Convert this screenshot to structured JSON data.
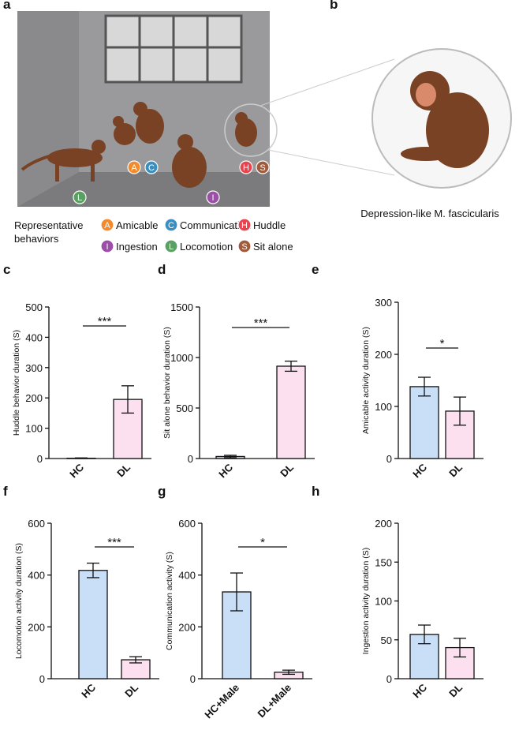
{
  "panels": {
    "a": "a",
    "b": "b"
  },
  "legend": {
    "title": "Representative behaviors",
    "behaviors": [
      {
        "letter": "A",
        "label": "Amicable",
        "color": "#f28a2e"
      },
      {
        "letter": "C",
        "label": "Communication",
        "color": "#3b8fc0"
      },
      {
        "letter": "H",
        "label": "Huddle",
        "color": "#e8434f"
      },
      {
        "letter": "I",
        "label": "Ingestion",
        "color": "#9b4fa6"
      },
      {
        "letter": "L",
        "label": "Locomotion",
        "color": "#5aa063"
      },
      {
        "letter": "S",
        "label": "Sit alone",
        "color": "#a05a3c"
      }
    ]
  },
  "caption_b": "Depression-like M. fascicularis",
  "chart_data": [
    {
      "type": "bar",
      "panel": "c",
      "ylabel": "Huddle behavior duration (S)",
      "categories": [
        "HC",
        "DL"
      ],
      "values": [
        1,
        195
      ],
      "errors": [
        1,
        45
      ],
      "colors": [
        "#c9def7",
        "#fde0ef"
      ],
      "ylim": [
        0,
        500
      ],
      "yticks": [
        0,
        100,
        200,
        300,
        400,
        500
      ],
      "significance": "***"
    },
    {
      "type": "bar",
      "panel": "d",
      "ylabel": "Sit alone behavior duration (S)",
      "categories": [
        "HC",
        "DL"
      ],
      "values": [
        20,
        914
      ],
      "errors": [
        12,
        50
      ],
      "colors": [
        "#c9def7",
        "#fde0ef"
      ],
      "ylim": [
        0,
        1500
      ],
      "yticks": [
        0,
        500,
        1000,
        1500
      ],
      "significance": "***"
    },
    {
      "type": "bar",
      "panel": "e",
      "ylabel": "Amicable activity duration (S)",
      "categories": [
        "HC",
        "DL"
      ],
      "values": [
        138,
        91
      ],
      "errors": [
        18,
        27
      ],
      "colors": [
        "#c9def7",
        "#fde0ef"
      ],
      "ylim": [
        0,
        300
      ],
      "yticks": [
        0,
        100,
        200,
        300
      ],
      "significance": "*"
    },
    {
      "type": "bar",
      "panel": "f",
      "ylabel": "Locomotion activity duration (S)",
      "categories": [
        "HC",
        "DL"
      ],
      "values": [
        418,
        73
      ],
      "errors": [
        28,
        12
      ],
      "colors": [
        "#c9def7",
        "#fde0ef"
      ],
      "ylim": [
        0,
        600
      ],
      "yticks": [
        0,
        200,
        400,
        600
      ],
      "significance": "***"
    },
    {
      "type": "bar",
      "panel": "g",
      "ylabel": "Communication activity (S)",
      "categories": [
        "HC+Male",
        "DL+Male"
      ],
      "values": [
        335,
        25
      ],
      "errors": [
        73,
        8
      ],
      "colors": [
        "#c9def7",
        "#fde0ef"
      ],
      "ylim": [
        0,
        600
      ],
      "yticks": [
        0,
        200,
        400,
        600
      ],
      "significance": "*"
    },
    {
      "type": "bar",
      "panel": "h",
      "ylabel": "Ingestion activity duration (S)",
      "categories": [
        "HC",
        "DL"
      ],
      "values": [
        57,
        40
      ],
      "errors": [
        12,
        12
      ],
      "colors": [
        "#c9def7",
        "#fde0ef"
      ],
      "ylim": [
        0,
        200
      ],
      "yticks": [
        0,
        50,
        100,
        150,
        200
      ]
    }
  ]
}
